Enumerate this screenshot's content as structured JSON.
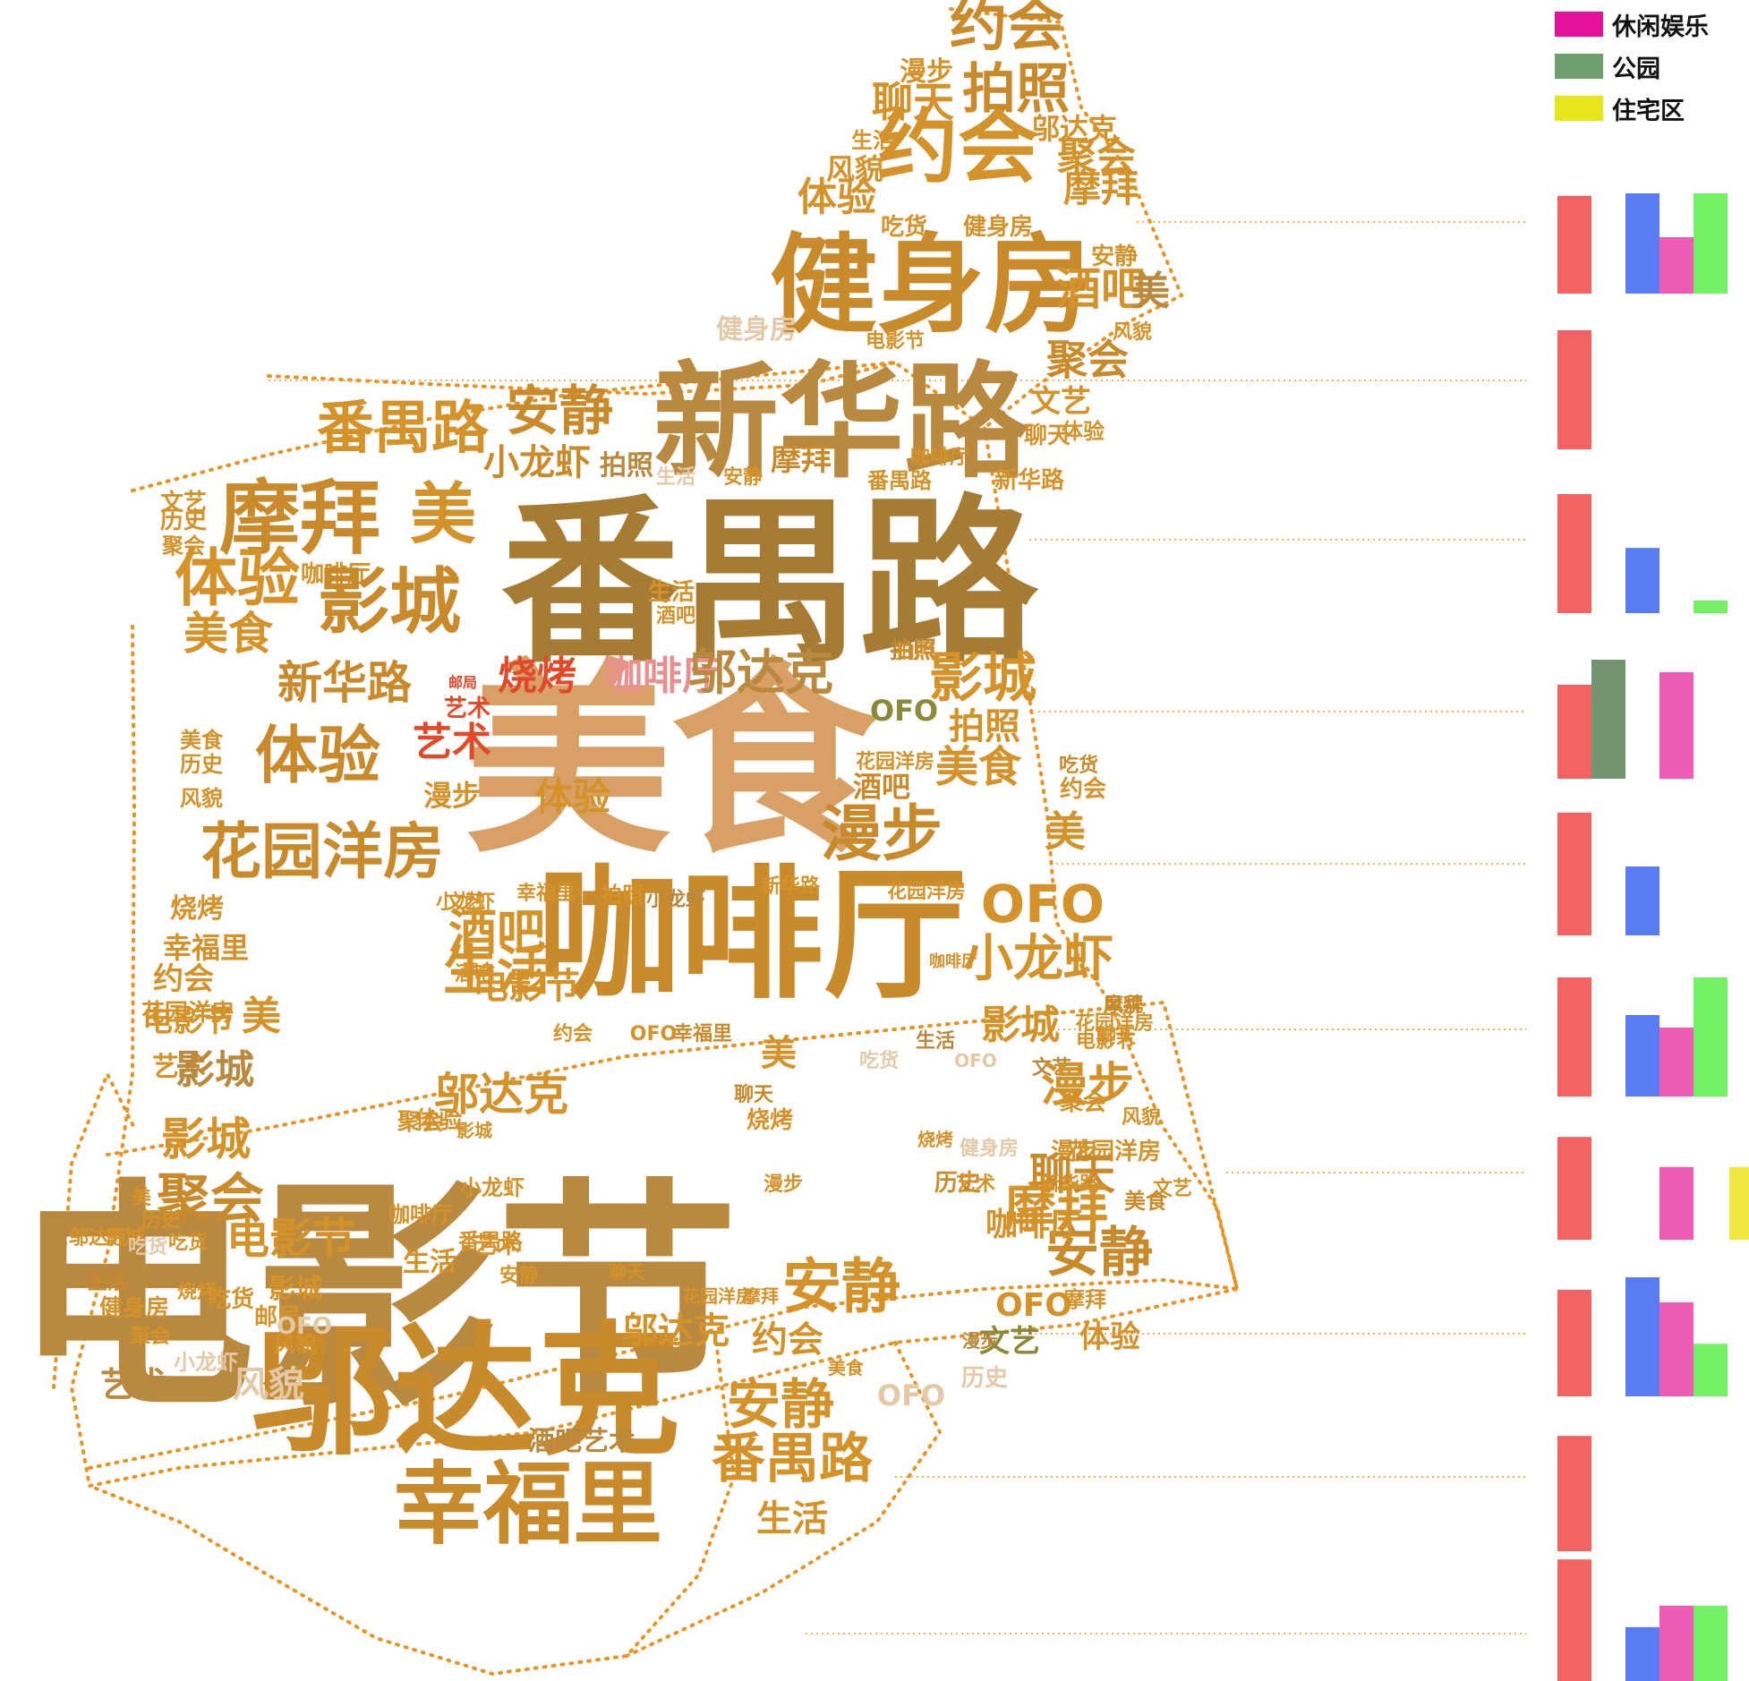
{
  "legend": [
    {
      "label": "休闲娱乐",
      "color": "#e6119a"
    },
    {
      "label": "公园",
      "color": "#6e9f6e"
    },
    {
      "label": "住宅区",
      "color": "#e6e61a"
    }
  ],
  "palette": {
    "amber": "#d4922a",
    "tan": "#b8893f",
    "brown": "#a67c35",
    "caramel": "#c98a2b",
    "peach": "#d9a066",
    "olive": "#8a8a3a",
    "red": "#e04a2a",
    "pink": "#e89090",
    "beige": "#e3c9a8",
    "orange": "#e69426",
    "outline": "#e69426",
    "leader": "#f0b060"
  },
  "words": [
    {
      "t": "电影节",
      "c": "tan"
    },
    {
      "t": "美食",
      "c": "peach"
    },
    {
      "t": "番禺路",
      "c": "brown"
    },
    {
      "t": "咖啡厅",
      "c": "caramel"
    },
    {
      "t": "新华路",
      "c": "tan"
    },
    {
      "t": "健身房",
      "c": "caramel"
    },
    {
      "t": "邬达克",
      "c": "caramel"
    },
    {
      "t": "幸福里",
      "c": "caramel"
    },
    {
      "t": "约会",
      "c": "caramel"
    },
    {
      "t": "约会",
      "c": "amber"
    },
    {
      "t": "拍照",
      "c": "caramel"
    },
    {
      "t": "聊天",
      "c": "amber"
    },
    {
      "t": "漫步",
      "c": "amber"
    },
    {
      "t": "邬达克",
      "c": "amber"
    },
    {
      "t": "生活",
      "c": "amber"
    },
    {
      "t": "风貌",
      "c": "amber"
    },
    {
      "t": "聚会",
      "c": "amber"
    },
    {
      "t": "摩拜",
      "c": "amber"
    },
    {
      "t": "体验",
      "c": "amber"
    },
    {
      "t": "吃货",
      "c": "amber"
    },
    {
      "t": "健身房",
      "c": "amber"
    },
    {
      "t": "安静",
      "c": "amber"
    },
    {
      "t": "酒吧",
      "c": "amber"
    },
    {
      "t": "美",
      "c": "tan"
    },
    {
      "t": "健身房",
      "c": "beige"
    },
    {
      "t": "电影节",
      "c": "amber"
    },
    {
      "t": "风貌",
      "c": "amber"
    },
    {
      "t": "聚会",
      "c": "caramel"
    },
    {
      "t": "文艺",
      "c": "amber"
    },
    {
      "t": "聊天",
      "c": "amber"
    },
    {
      "t": "番禺路",
      "c": "amber"
    },
    {
      "t": "安静",
      "c": "caramel"
    },
    {
      "t": "体验",
      "c": "amber"
    },
    {
      "t": "小龙虾",
      "c": "caramel"
    },
    {
      "t": "拍照",
      "c": "tan"
    },
    {
      "t": "生活",
      "c": "beige"
    },
    {
      "t": "安静",
      "c": "amber"
    },
    {
      "t": "摩拜",
      "c": "caramel"
    },
    {
      "t": "咖啡厅",
      "c": "amber"
    },
    {
      "t": "番禺路",
      "c": "amber"
    },
    {
      "t": "新华路",
      "c": "amber"
    },
    {
      "t": "文艺",
      "c": "amber"
    },
    {
      "t": "历史",
      "c": "amber"
    },
    {
      "t": "聚会",
      "c": "amber"
    },
    {
      "t": "摩拜",
      "c": "caramel"
    },
    {
      "t": "美",
      "c": "amber"
    },
    {
      "t": "咖啡厅",
      "c": "amber"
    },
    {
      "t": "体验",
      "c": "amber"
    },
    {
      "t": "影城",
      "c": "caramel"
    },
    {
      "t": "生活",
      "c": "amber"
    },
    {
      "t": "酒吧",
      "c": "amber"
    },
    {
      "t": "拍照",
      "c": "tan"
    },
    {
      "t": "美食",
      "c": "amber"
    },
    {
      "t": "新华路",
      "c": "caramel"
    },
    {
      "t": "邮局",
      "c": "red"
    },
    {
      "t": "艺术",
      "c": "red"
    },
    {
      "t": "艺术",
      "c": "red"
    },
    {
      "t": "烧烤",
      "c": "red"
    },
    {
      "t": "咖啡厅",
      "c": "pink"
    },
    {
      "t": "邬达克",
      "c": "tan"
    },
    {
      "t": "拍照",
      "c": "amber"
    },
    {
      "t": "影城",
      "c": "amber"
    },
    {
      "t": "OFO",
      "c": "olive"
    },
    {
      "t": "拍照",
      "c": "amber"
    },
    {
      "t": "花园洋房",
      "c": "amber"
    },
    {
      "t": "美食",
      "c": "amber"
    },
    {
      "t": "吃货",
      "c": "caramel"
    },
    {
      "t": "约会",
      "c": "amber"
    },
    {
      "t": "酒吧",
      "c": "caramel"
    },
    {
      "t": "美食",
      "c": "amber"
    },
    {
      "t": "历史",
      "c": "amber"
    },
    {
      "t": "风貌",
      "c": "amber"
    },
    {
      "t": "体验",
      "c": "caramel"
    },
    {
      "t": "漫步",
      "c": "amber"
    },
    {
      "t": "体验",
      "c": "amber"
    },
    {
      "t": "漫步",
      "c": "caramel"
    },
    {
      "t": "美",
      "c": "amber"
    },
    {
      "t": "花园洋房",
      "c": "caramel"
    },
    {
      "t": "烧烤",
      "c": "amber"
    },
    {
      "t": "小龙虾",
      "c": "amber"
    },
    {
      "t": "幸福里",
      "c": "amber"
    },
    {
      "t": "拍照",
      "c": "amber"
    },
    {
      "t": "小龙虾",
      "c": "tan"
    },
    {
      "t": "新华路",
      "c": "amber"
    },
    {
      "t": "花园洋房",
      "c": "amber"
    },
    {
      "t": "OFO",
      "c": "amber"
    },
    {
      "t": "幸福里",
      "c": "amber"
    },
    {
      "t": "文艺",
      "c": "amber"
    },
    {
      "t": "酒吧",
      "c": "amber"
    },
    {
      "t": "约会",
      "c": "amber"
    },
    {
      "t": "花园洋房",
      "c": "amber"
    },
    {
      "t": "小龙虾",
      "c": "amber"
    },
    {
      "t": "摩拜",
      "c": "caramel"
    },
    {
      "t": "影城",
      "c": "amber"
    },
    {
      "t": "生活",
      "c": "tan"
    },
    {
      "t": "电影节",
      "c": "amber"
    },
    {
      "t": "风貌",
      "c": "caramel"
    },
    {
      "t": "艺术",
      "c": "amber"
    },
    {
      "t": "酒吧",
      "c": "amber"
    },
    {
      "t": "聚会",
      "c": "amber"
    },
    {
      "t": "聊天",
      "c": "amber"
    },
    {
      "t": "美",
      "c": "amber"
    },
    {
      "t": "影城",
      "c": "tan"
    },
    {
      "t": "花园洋房",
      "c": "amber"
    },
    {
      "t": "电影节",
      "c": "amber"
    },
    {
      "t": "文艺",
      "c": "tan"
    },
    {
      "t": "咖啡厅",
      "c": "amber"
    },
    {
      "t": "电影节",
      "c": "amber"
    },
    {
      "t": "生活",
      "c": "amber"
    },
    {
      "t": "约会",
      "c": "amber"
    },
    {
      "t": "OFO",
      "c": "amber"
    },
    {
      "t": "幸福里",
      "c": "caramel"
    },
    {
      "t": "美",
      "c": "amber"
    },
    {
      "t": "吃货",
      "c": "beige"
    },
    {
      "t": "OFO",
      "c": "beige"
    },
    {
      "t": "漫步",
      "c": "amber"
    },
    {
      "t": "邬达克",
      "c": "amber"
    },
    {
      "t": "聊天",
      "c": "caramel"
    },
    {
      "t": "烧烤",
      "c": "amber"
    },
    {
      "t": "聚会",
      "c": "amber"
    },
    {
      "t": "风貌",
      "c": "amber"
    },
    {
      "t": "影城",
      "c": "amber"
    },
    {
      "t": "聚会",
      "c": "amber"
    },
    {
      "t": "影城",
      "c": "amber"
    },
    {
      "t": "健身房",
      "c": "beige"
    },
    {
      "t": "漫步",
      "c": "amber"
    },
    {
      "t": "聚会",
      "c": "caramel"
    },
    {
      "t": "体验",
      "c": "amber"
    },
    {
      "t": "花园洋房",
      "c": "amber"
    },
    {
      "t": "烧烤",
      "c": "amber"
    },
    {
      "t": "小龙虾",
      "c": "amber"
    },
    {
      "t": "聊天",
      "c": "caramel"
    },
    {
      "t": "历史",
      "c": "caramel"
    },
    {
      "t": "漫步",
      "c": "amber"
    },
    {
      "t": "艺术",
      "c": "amber"
    },
    {
      "t": "新华路",
      "c": "amber"
    },
    {
      "t": "摩拜",
      "c": "amber"
    },
    {
      "t": "美",
      "c": "amber"
    },
    {
      "t": "文艺",
      "c": "tan"
    },
    {
      "t": "历史",
      "c": "amber"
    },
    {
      "t": "文艺",
      "c": "amber"
    },
    {
      "t": "咖啡厅",
      "c": "amber"
    },
    {
      "t": "美食",
      "c": "caramel"
    },
    {
      "t": "安静",
      "c": "caramel"
    },
    {
      "t": "艺术",
      "c": "amber"
    },
    {
      "t": "番禺路",
      "c": "amber"
    },
    {
      "t": "邬达克",
      "c": "amber"
    },
    {
      "t": "影城",
      "c": "amber"
    },
    {
      "t": "吃货",
      "c": "beige"
    },
    {
      "t": "吃货",
      "c": "amber"
    },
    {
      "t": "生活",
      "c": "caramel"
    },
    {
      "t": "健身房",
      "c": "amber"
    },
    {
      "t": "聚会",
      "c": "amber"
    },
    {
      "t": "烧烤",
      "c": "amber"
    },
    {
      "t": "吃货",
      "c": "amber"
    },
    {
      "t": "生活",
      "c": "amber"
    },
    {
      "t": "电影节",
      "c": "amber"
    },
    {
      "t": "影城",
      "c": "amber"
    },
    {
      "t": "邮局",
      "c": "amber"
    },
    {
      "t": "OFO",
      "c": "beige"
    },
    {
      "t": "风貌",
      "c": "beige"
    },
    {
      "t": "艺术",
      "c": "tan"
    },
    {
      "t": "咖啡厅",
      "c": "amber"
    },
    {
      "t": "安静",
      "c": "amber"
    },
    {
      "t": "小龙虾",
      "c": "beige"
    },
    {
      "t": "风貌",
      "c": "amber"
    },
    {
      "t": "安静",
      "c": "amber"
    },
    {
      "t": "聊天",
      "c": "amber"
    },
    {
      "t": "OFO",
      "c": "amber"
    },
    {
      "t": "邬达克",
      "c": "amber"
    },
    {
      "t": "花园洋房",
      "c": "amber"
    },
    {
      "t": "摩拜",
      "c": "amber"
    },
    {
      "t": "约会",
      "c": "amber"
    },
    {
      "t": "文艺",
      "c": "olive"
    },
    {
      "t": "历史",
      "c": "beige"
    },
    {
      "t": "OFO",
      "c": "beige"
    },
    {
      "t": "安静",
      "c": "amber"
    },
    {
      "t": "番禺路",
      "c": "amber"
    },
    {
      "t": "生活",
      "c": "amber"
    },
    {
      "t": "酒吧艺术",
      "c": "tan"
    },
    {
      "t": "美食",
      "c": "amber"
    },
    {
      "t": "漫步",
      "c": "tan"
    },
    {
      "t": "摩拜",
      "c": "amber"
    },
    {
      "t": "体验",
      "c": "amber"
    }
  ],
  "bar_groups": [
    [
      0.78,
      0,
      0.8,
      0.45,
      0.8,
      0
    ],
    [
      0.95,
      0,
      0,
      0,
      0,
      0
    ],
    [
      0.95,
      0,
      0.52,
      0,
      0.1,
      0
    ],
    [
      0.75,
      0.95,
      0,
      0.85,
      0,
      0
    ],
    [
      0.98,
      0,
      0.55,
      0,
      0,
      0
    ],
    [
      0.95,
      0,
      0.65,
      0.55,
      0.95,
      0
    ],
    [
      0.82,
      0,
      0,
      0.58,
      0,
      0.58
    ],
    [
      0.85,
      0,
      0.95,
      0.75,
      0.42,
      0
    ],
    [
      0.92,
      0,
      0,
      0,
      0,
      0
    ],
    [
      0.97,
      0,
      0.43,
      0.6,
      0.6,
      0
    ]
  ]
}
